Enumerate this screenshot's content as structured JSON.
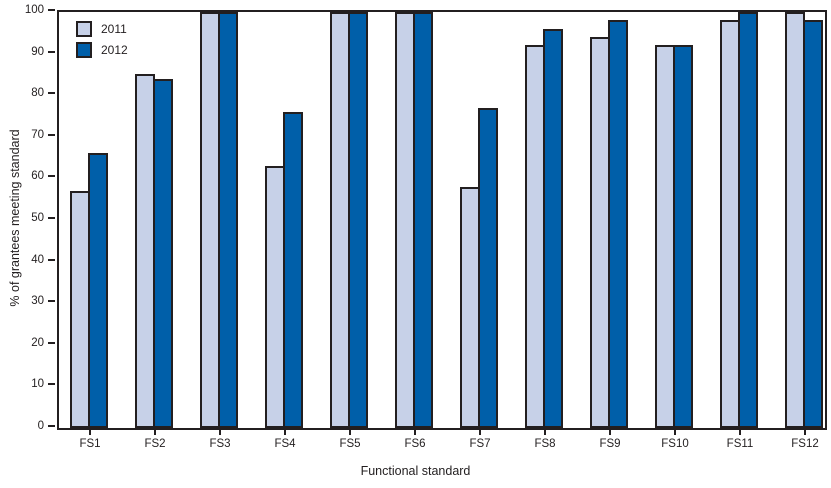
{
  "chart_data": {
    "type": "bar",
    "title": "",
    "categories": [
      "FS1",
      "FS2",
      "FS3",
      "FS4",
      "FS5",
      "FS6",
      "FS7",
      "FS8",
      "FS9",
      "FS10",
      "FS11",
      "FS12"
    ],
    "series": [
      {
        "name": "2011",
        "color": "#c7d1e8",
        "values": [
          57,
          85,
          100,
          63,
          100,
          100,
          58,
          92,
          94,
          92,
          98,
          100
        ]
      },
      {
        "name": "2012",
        "color": "#005fa9",
        "values": [
          66,
          84,
          100,
          76,
          100,
          100,
          77,
          96,
          98,
          92,
          100,
          98
        ]
      }
    ],
    "xlabel": "Functional standard",
    "ylabel": "% of grantees meeting standard",
    "ylim": [
      0,
      100
    ],
    "yticks": [
      0,
      10,
      20,
      30,
      40,
      50,
      60,
      70,
      80,
      90,
      100
    ],
    "grid": false,
    "legend_position": "top-left"
  },
  "colors": {
    "axis": "#231f20",
    "bar_2011": "#c7d1e8",
    "bar_2012": "#005fa9",
    "background": "#ffffff"
  }
}
